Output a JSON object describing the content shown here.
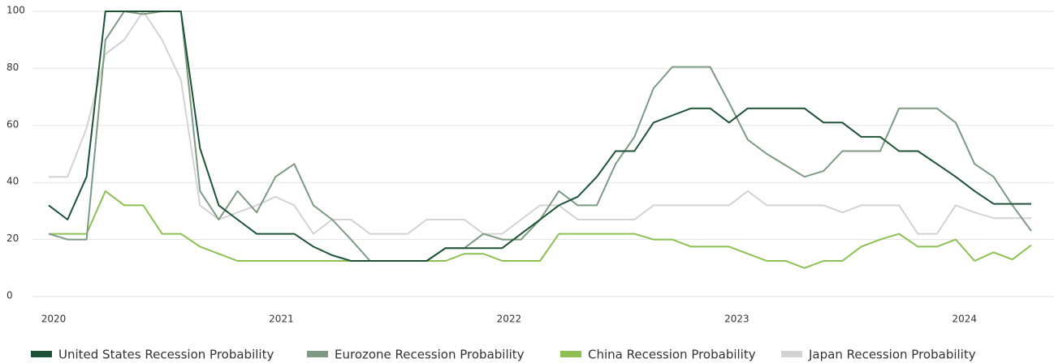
{
  "chart_data": {
    "type": "line",
    "x": [
      2020,
      2020.083,
      2020.167,
      2020.25,
      2020.333,
      2020.417,
      2020.5,
      2020.583,
      2020.667,
      2020.75,
      2020.833,
      2020.917,
      2021,
      2021.083,
      2021.167,
      2021.25,
      2021.333,
      2021.417,
      2021.5,
      2021.583,
      2021.667,
      2021.75,
      2021.833,
      2021.917,
      2022,
      2022.083,
      2022.167,
      2022.25,
      2022.333,
      2022.417,
      2022.5,
      2022.583,
      2022.667,
      2022.75,
      2022.833,
      2022.917,
      2023,
      2023.083,
      2023.167,
      2023.25,
      2023.333,
      2023.417,
      2023.5,
      2023.583,
      2023.667,
      2023.75,
      2023.833,
      2023.917,
      2024,
      2024.083,
      2024.167,
      2024.25,
      2024.333
    ],
    "series": [
      {
        "name": "United States Recession Probability",
        "color": "#1d5236",
        "values": [
          32,
          27,
          42,
          100,
          100,
          100,
          100,
          100,
          52,
          32,
          27,
          22,
          22,
          22,
          17.5,
          14.5,
          12.5,
          12.5,
          12.5,
          12.5,
          12.5,
          17,
          17,
          17,
          17,
          22,
          27,
          32,
          35,
          42,
          51,
          51,
          61,
          63.5,
          66,
          66,
          61,
          66,
          66,
          66,
          66,
          61,
          61,
          56,
          56,
          51,
          51,
          46.5,
          42,
          37,
          32.5,
          32.5,
          32.5
        ]
      },
      {
        "name": "Eurozone Recession Probability",
        "color": "#7e9a83",
        "values": [
          22,
          20,
          20,
          90,
          100,
          99,
          100,
          100,
          37,
          27,
          37,
          29.5,
          42,
          46.5,
          32,
          27,
          20,
          12.5,
          12.5,
          12.5,
          12.5,
          17,
          17,
          22,
          20,
          20,
          27,
          37,
          32,
          32,
          46.5,
          56,
          73,
          80.5,
          80.5,
          80.5,
          68,
          55,
          50,
          46,
          42,
          44,
          51,
          51,
          51,
          66,
          66,
          66,
          61,
          46.5,
          42,
          32,
          23
        ]
      },
      {
        "name": "China Recession Probability",
        "color": "#8cc152",
        "values": [
          22,
          22,
          22,
          37,
          32,
          32,
          22,
          22,
          17.5,
          15,
          12.5,
          12.5,
          12.5,
          12.5,
          12.5,
          12.5,
          12.5,
          12.5,
          12.5,
          12.5,
          12.5,
          12.5,
          15,
          15,
          12.5,
          12.5,
          12.5,
          22,
          22,
          22,
          22,
          22,
          20,
          20,
          17.5,
          17.5,
          17.5,
          15,
          12.5,
          12.5,
          10,
          12.5,
          12.5,
          17.5,
          20,
          22,
          17.5,
          17.5,
          20,
          12.5,
          15.5,
          13,
          18
        ]
      },
      {
        "name": "Japan Recession Probability",
        "color": "#d3d3d3",
        "values": [
          42,
          42,
          59,
          85,
          90,
          100,
          90,
          76,
          32,
          27,
          29.5,
          32,
          35,
          32,
          22,
          27,
          27,
          22,
          22,
          22,
          27,
          27,
          27,
          22,
          22,
          27,
          32,
          32,
          27,
          27,
          27,
          27,
          32,
          32,
          32,
          32,
          32,
          37,
          32,
          32,
          32,
          32,
          29.5,
          32,
          32,
          32,
          22,
          22,
          32,
          29.5,
          27.5,
          27.5,
          27.5
        ]
      }
    ],
    "xlim": [
      2020,
      2024.333
    ],
    "xticks": [
      2020,
      2021,
      2022,
      2023,
      2024
    ],
    "ylim": [
      0,
      100
    ],
    "yticks": [
      0,
      20,
      40,
      60,
      80,
      100
    ],
    "grid": true,
    "legend": "bottom"
  }
}
